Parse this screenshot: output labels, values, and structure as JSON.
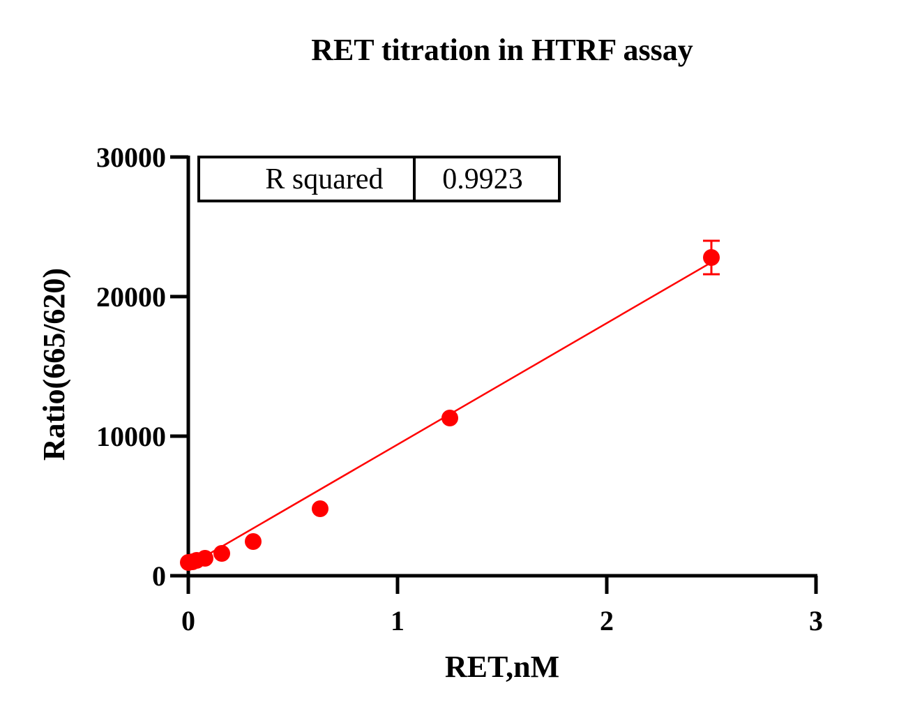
{
  "chart_data": {
    "type": "scatter",
    "title": "RET titration in HTRF assay",
    "xlabel": "RET,nM",
    "ylabel": "Ratio(665/620)",
    "xlim": [
      0,
      3
    ],
    "ylim": [
      0,
      30000
    ],
    "x_ticks": [
      "0",
      "1",
      "2",
      "3"
    ],
    "y_ticks": [
      "0",
      "10000",
      "20000",
      "30000"
    ],
    "grid": false,
    "legend": "none",
    "series": [
      {
        "color": "#ff0000",
        "points": [
          {
            "x": 0.0,
            "y": 950
          },
          {
            "x": 0.02,
            "y": 1000
          },
          {
            "x": 0.04,
            "y": 1100
          },
          {
            "x": 0.08,
            "y": 1250
          },
          {
            "x": 0.16,
            "y": 1600
          },
          {
            "x": 0.31,
            "y": 2450
          },
          {
            "x": 0.63,
            "y": 4800
          },
          {
            "x": 1.25,
            "y": 11300
          },
          {
            "x": 2.5,
            "y": 22800,
            "error": 1200
          }
        ],
        "fit_line": {
          "x_start": 0.0,
          "y_start": 700,
          "x_end": 2.5,
          "y_end": 22450
        }
      }
    ],
    "stats_table": {
      "label": "R squared",
      "value": "0.9923"
    }
  }
}
